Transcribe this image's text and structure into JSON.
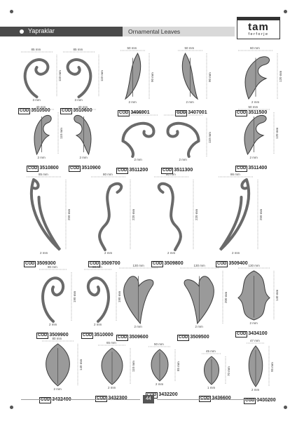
{
  "header": {
    "title_tr": "Yapraklar",
    "title_en": "Ornamental Leaves"
  },
  "logo": {
    "main": "tam",
    "sub": "ferforje"
  },
  "page_number": "44",
  "code_prefix": "COD",
  "items": [
    {
      "code": "3510500",
      "w": "85 mm",
      "h": "110 mm",
      "d": "3 mm"
    },
    {
      "code": "3510600",
      "w": "85 mm",
      "h": "110 mm",
      "d": "3 mm"
    },
    {
      "code": "3406901",
      "w": "50 mm",
      "h": "90 mm",
      "d": "2 mm"
    },
    {
      "code": "3407001",
      "w": "50 mm",
      "h": "90 mm",
      "d": "2 mm"
    },
    {
      "code": "3511500",
      "w": "60 mm",
      "h": "120 mm",
      "d": "2 mm"
    },
    {
      "code": "3510800",
      "w": "40 mm",
      "h": "110 mm",
      "d": "2 mm"
    },
    {
      "code": "3510900",
      "w": "40 mm",
      "h": "",
      "d": "2 mm"
    },
    {
      "code": "3511200",
      "w": "95 mm",
      "h": "",
      "d": "2 mm"
    },
    {
      "code": "3511300",
      "w": "95 mm",
      "h": "110 mm",
      "d": "2 mm"
    },
    {
      "code": "3511400",
      "w": "50 mm",
      "h": "120 mm",
      "d": "2 mm"
    },
    {
      "code": "3509300",
      "w": "85 mm",
      "h": "250 mm",
      "d": "2 mm"
    },
    {
      "code": "3509700",
      "w": "80 mm",
      "h": "220 mm",
      "d": "2 mm"
    },
    {
      "code": "3509800",
      "w": "80 mm",
      "h": "220 mm",
      "d": "2 mm"
    },
    {
      "code": "3509400",
      "w": "86 mm",
      "h": "250 mm",
      "d": "2 mm"
    },
    {
      "code": "3509900",
      "w": "90 mm",
      "h": "190 mm",
      "d": "2 mm"
    },
    {
      "code": "3510000",
      "w": "90 mm",
      "h": "190 mm",
      "d": "2 mm"
    },
    {
      "code": "3509600",
      "w": "130 mm",
      "h": "",
      "d": "2 mm"
    },
    {
      "code": "3509500",
      "w": "130 mm",
      "h": "200 mm",
      "d": "2 mm"
    },
    {
      "code": "3434100",
      "w": "130 mm",
      "h": "140 mm",
      "d": "2 mm"
    },
    {
      "code": "3432400",
      "w": "80 mm",
      "h": "140 mm",
      "d": "2 mm"
    },
    {
      "code": "3432300",
      "w": "65 mm",
      "h": "110 mm",
      "d": "2 mm"
    },
    {
      "code": "3432200",
      "w": "50 mm",
      "h": "85 mm",
      "d": "2 mm"
    },
    {
      "code": "3436600",
      "w": "45 mm",
      "h": "70 mm",
      "d": "1 mm"
    },
    {
      "code": "3436200",
      "w": "47 mm",
      "h": "95 mm",
      "d": "2 mm"
    }
  ]
}
